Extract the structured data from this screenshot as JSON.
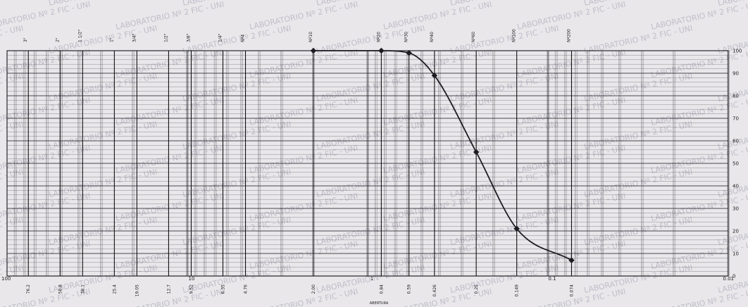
{
  "watermark": {
    "text": "LABORATORIO Nº 2 FIC - UNI"
  },
  "footer": {
    "label": "ABERTURA"
  },
  "chart_data": {
    "type": "line",
    "x_scale": "log",
    "x_reversed": true,
    "xlim": [
      100,
      0.01
    ],
    "ylim": [
      0,
      100
    ],
    "grid": true,
    "sieve_names": [
      "3\"",
      "2\"",
      "1 1/2\"",
      "1\"",
      "3/4\"",
      "1/2\"",
      "3/8\"",
      "1/4\"",
      "Nº4",
      "Nº10",
      "Nº20",
      "Nº30",
      "Nº40",
      "Nº60",
      "Nº100",
      "Nº200"
    ],
    "sieve_openings": [
      "76.2",
      "50.8",
      "38.1",
      "25.4",
      "19.05",
      "12.7",
      "9.52",
      "6.35",
      "4.76",
      "2.00",
      "0.84",
      "0.59",
      "0.426",
      "0.25",
      "0.149",
      "0.074"
    ],
    "sieve_opening_values": [
      76.2,
      50.8,
      38.1,
      25.4,
      19.05,
      12.7,
      9.52,
      6.35,
      4.76,
      2.0,
      0.84,
      0.59,
      0.426,
      0.25,
      0.149,
      0.074
    ],
    "decade_labels": [
      "100",
      "10",
      "1",
      "0.1",
      "0.01"
    ],
    "decade_values": [
      100,
      10,
      1,
      0.1,
      0.01
    ],
    "y_ticks": [
      "0",
      "10",
      "20",
      "30",
      "40",
      "50",
      "60",
      "70",
      "80",
      "90",
      "100"
    ],
    "y_tick_values": [
      0,
      10,
      20,
      30,
      40,
      50,
      60,
      70,
      80,
      90,
      100
    ],
    "series": [
      {
        "color": "#1c1c22",
        "x": [
          2.0,
          0.84,
          0.59,
          0.426,
          0.25,
          0.149,
          0.074
        ],
        "y": [
          100,
          100,
          99,
          89,
          55,
          21,
          7
        ]
      }
    ]
  }
}
